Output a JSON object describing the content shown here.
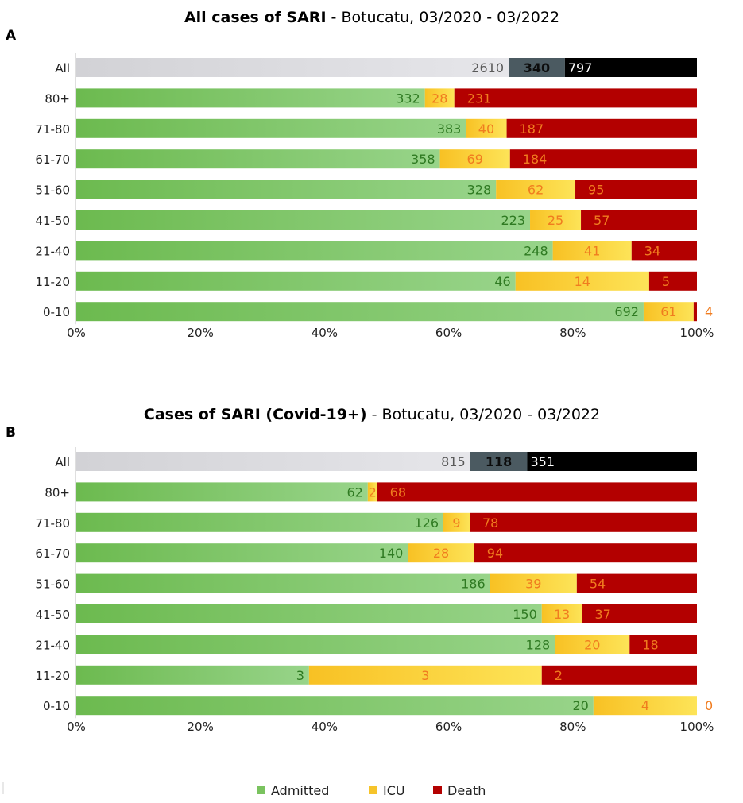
{
  "colors": {
    "admitted": "#7ac35f",
    "icu": "#f6c42a",
    "death": "#b30000",
    "all_first": "#d7d7dc",
    "all_second": "#4b5a61",
    "all_third": "#000000"
  },
  "legend": {
    "items": [
      {
        "key": "admitted",
        "label": "Admitted"
      },
      {
        "key": "icu",
        "label": "ICU"
      },
      {
        "key": "death",
        "label": "Death"
      }
    ]
  },
  "chart_data": [
    {
      "type": "bar",
      "orientation": "horizontal",
      "stacked": "100%",
      "panel_label": "A",
      "title": "All cases of SARI",
      "subtitle": " - Botucatu, 03/2020 - 03/2022",
      "categories": [
        "All",
        "80+",
        "71-80",
        "61-70",
        "51-60",
        "41-50",
        "21-40",
        "11-20",
        "0-10"
      ],
      "series": [
        {
          "name": "Admitted",
          "values": [
            2610,
            332,
            383,
            358,
            328,
            223,
            248,
            46,
            692
          ]
        },
        {
          "name": "ICU",
          "values": [
            340,
            28,
            40,
            69,
            62,
            25,
            41,
            14,
            61
          ]
        },
        {
          "name": "Death",
          "values": [
            797,
            231,
            187,
            184,
            95,
            57,
            34,
            5,
            4
          ]
        }
      ],
      "xticks": [
        "0%",
        "20%",
        "40%",
        "60%",
        "80%",
        "100%"
      ],
      "xlim": [
        0,
        100
      ],
      "legend": "bottom-center"
    },
    {
      "type": "bar",
      "orientation": "horizontal",
      "stacked": "100%",
      "panel_label": "B",
      "title": "Cases of SARI  (Covid-19+)",
      "subtitle": " - Botucatu, 03/2020 - 03/2022",
      "categories": [
        "All",
        "80+",
        "71-80",
        "61-70",
        "51-60",
        "41-50",
        "21-40",
        "11-20",
        "0-10"
      ],
      "series": [
        {
          "name": "Admitted",
          "values": [
            815,
            62,
            126,
            140,
            186,
            150,
            128,
            3,
            20
          ]
        },
        {
          "name": "ICU",
          "values": [
            118,
            2,
            9,
            28,
            39,
            13,
            20,
            3,
            4
          ]
        },
        {
          "name": "Death",
          "values": [
            351,
            68,
            78,
            94,
            54,
            37,
            18,
            2,
            0
          ]
        }
      ],
      "xticks": [
        "0%",
        "20%",
        "40%",
        "60%",
        "80%",
        "100%"
      ],
      "xlim": [
        0,
        100
      ],
      "legend": "bottom-center"
    }
  ]
}
